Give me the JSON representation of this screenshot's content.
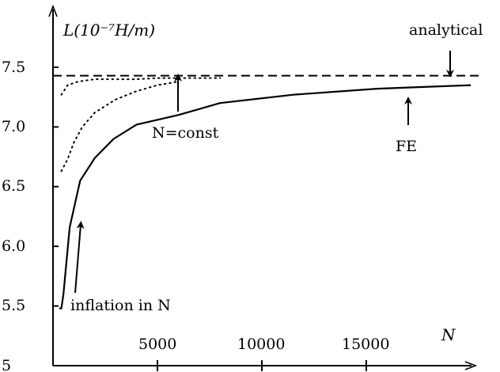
{
  "chart_data": {
    "type": "line",
    "ylabel": "L(10⁻⁷H/m)",
    "xlabel": "N",
    "xlim": [
      0,
      20500
    ],
    "ylim": [
      5,
      7.7
    ],
    "x_ticks": [
      5000,
      10000,
      15000
    ],
    "x_tick_labels": [
      "5000",
      "10000",
      "15000"
    ],
    "y_ticks": [
      5,
      5.5,
      6.0,
      6.5,
      7.0,
      7.5
    ],
    "y_tick_labels": [
      "5",
      "5.5",
      "6.0",
      "6.5",
      "7.0",
      "7.5"
    ],
    "grid": false,
    "series": [
      {
        "name": "analytical",
        "style": "dashed",
        "x": [
          0,
          20500
        ],
        "y": [
          7.43,
          7.43
        ]
      },
      {
        "name": "FE",
        "style": "solid",
        "x": [
          300,
          400,
          500,
          800,
          1300,
          2000,
          2900,
          4000,
          6000,
          8000,
          11500,
          15500,
          20000
        ],
        "y": [
          5.48,
          5.48,
          5.6,
          6.16,
          6.55,
          6.74,
          6.9,
          7.02,
          7.1,
          7.2,
          7.27,
          7.32,
          7.35
        ]
      },
      {
        "name": "",
        "style": "dotted",
        "x": [
          400,
          700,
          1000,
          1400,
          2000,
          3000,
          4000,
          5000,
          6000
        ],
        "y": [
          6.63,
          6.73,
          6.87,
          7.0,
          7.12,
          7.23,
          7.3,
          7.35,
          7.38
        ]
      },
      {
        "name": "",
        "style": "dotted",
        "x": [
          400,
          700,
          1200,
          2000,
          3000,
          4000,
          5000,
          6000,
          8000
        ],
        "y": [
          7.27,
          7.35,
          7.38,
          7.4,
          7.4,
          7.4,
          7.41,
          7.41,
          7.41
        ]
      }
    ],
    "annotations": [
      {
        "text": "analytical",
        "target": "analytical"
      },
      {
        "text": "FE",
        "target": "FE"
      },
      {
        "text": "N=const",
        "target": "N=const"
      },
      {
        "text": "inflation in N",
        "target": "inflation"
      }
    ]
  }
}
